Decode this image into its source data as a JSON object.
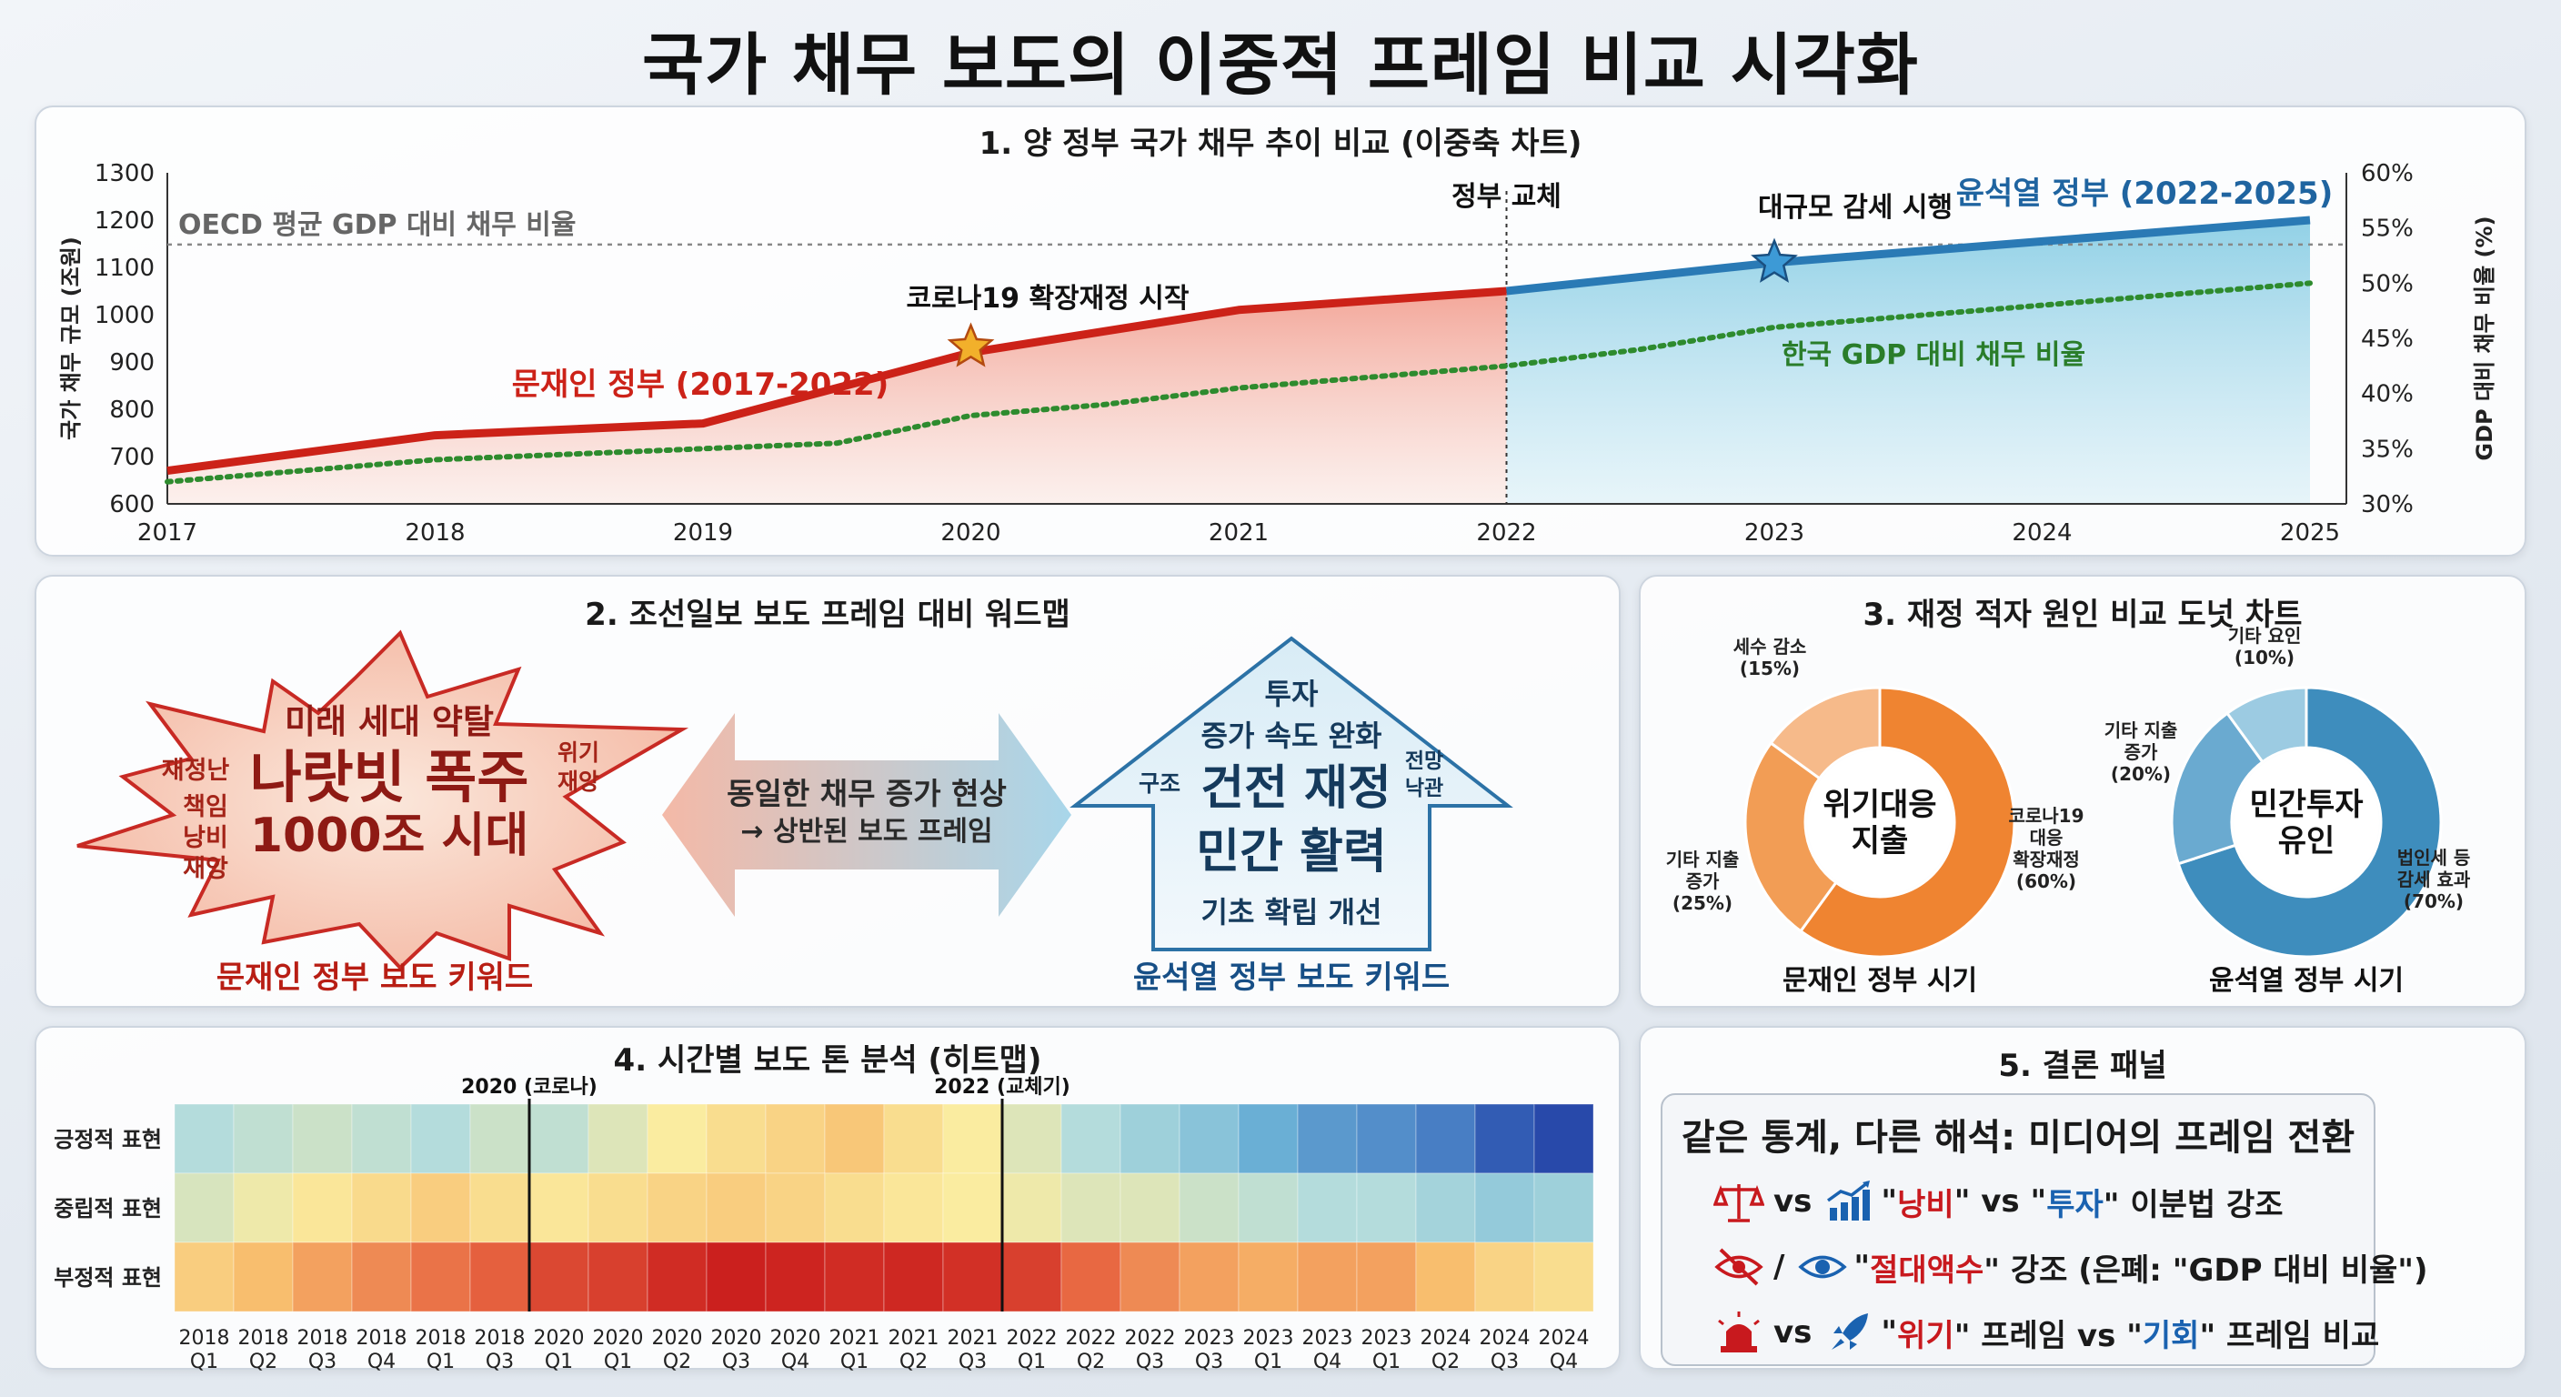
{
  "title": "국가 채무 보도의 이중적 프레임 비교 시각화",
  "chart_data": [
    {
      "type": "line",
      "panel_title": "1. 양 정부 국가 채무 추이 비교 (이중축 차트)",
      "x": [
        2017,
        2018,
        2019,
        2020,
        2021,
        2022,
        2023,
        2024,
        2025
      ],
      "series": [
        {
          "name": "문재인 정부 (2017-2022)",
          "axis": "left",
          "x": [
            2017,
            2018,
            2019,
            2020,
            2021,
            2022
          ],
          "values": [
            670,
            745,
            770,
            920,
            1010,
            1050
          ],
          "color": "#cc2218"
        },
        {
          "name": "윤석열 정부 (2022-2025)",
          "axis": "left",
          "x": [
            2022,
            2023,
            2024,
            2025
          ],
          "values": [
            1050,
            1110,
            1155,
            1200
          ],
          "color": "#2a7ab5"
        },
        {
          "name": "한국 GDP 대비 채무 비율",
          "axis": "right",
          "x": [
            2017,
            2017.5,
            2018,
            2018.5,
            2019,
            2019.5,
            2020,
            2020.5,
            2021,
            2021.5,
            2022,
            2022.5,
            2023,
            2023.5,
            2024,
            2024.5,
            2025
          ],
          "values": [
            32,
            33,
            34,
            34.5,
            35,
            35.5,
            38,
            39,
            40.5,
            41.5,
            42.5,
            44,
            46,
            47,
            48,
            49,
            50
          ],
          "color": "#2e8b2e"
        }
      ],
      "reference_line": {
        "label": "OECD 평균 GDP 대비 채무 비율",
        "value": 53.5
      },
      "ylabel_left": "국가 채무 규모 (조원)",
      "ylabel_right": "GDP 대비 채무 비율 (%)",
      "ylim_left": [
        600,
        1300
      ],
      "yticks_left": [
        600,
        700,
        800,
        900,
        1000,
        1100,
        1200,
        1300
      ],
      "ylim_right": [
        30,
        60
      ],
      "yticks_right": [
        "30%",
        "35%",
        "40%",
        "45%",
        "50%",
        "55%",
        "60%"
      ],
      "annotations": {
        "covid": "코로나19 확장재정 시작",
        "transition": "정부 교체",
        "taxcut": "대규모 감세 시행"
      }
    },
    {
      "type": "pie",
      "donut": true,
      "panel_title": "3. 재정 적자 원인 비교 도넛 차트",
      "charts": [
        {
          "name": "문재인 정부 시기",
          "center": [
            "위기대응",
            "지출"
          ],
          "slices": [
            {
              "label": [
                "코로나19",
                "대응",
                "확장재정",
                "(60%)"
              ],
              "value": 60,
              "color": "#ef8431"
            },
            {
              "label": [
                "기타 지출",
                "증가",
                "(25%)"
              ],
              "value": 25,
              "color": "#f29d55"
            },
            {
              "label": [
                "세수 감소",
                "(15%)"
              ],
              "value": 15,
              "color": "#f6ba8a"
            }
          ]
        },
        {
          "name": "윤석열 정부 시기",
          "center": [
            "민간투자",
            "유인"
          ],
          "slices": [
            {
              "label": [
                "법인세 등",
                "감세 효과",
                "(70%)"
              ],
              "value": 70,
              "color": "#3e8dbd"
            },
            {
              "label": [
                "기타 지출",
                "증가",
                "(20%)"
              ],
              "value": 20,
              "color": "#6aaad0"
            },
            {
              "label": [
                "기타 요인",
                "(10%)"
              ],
              "value": 10,
              "color": "#9ccbe2"
            }
          ]
        }
      ]
    },
    {
      "type": "heatmap",
      "panel_title": "4. 시간별 보도 톤 분석 (히트맵)",
      "rows": [
        "긍정적 표현",
        "중립적 표현",
        "부정적 표현"
      ],
      "columns": [
        [
          "2018",
          "Q1"
        ],
        [
          "2018",
          "Q2"
        ],
        [
          "2018",
          "Q3"
        ],
        [
          "2018",
          "Q4"
        ],
        [
          "2018",
          "Q1"
        ],
        [
          "2018",
          "Q3"
        ],
        [
          "2020",
          "Q1"
        ],
        [
          "2020",
          "Q1"
        ],
        [
          "2020",
          "Q2"
        ],
        [
          "2020",
          "Q3"
        ],
        [
          "2020",
          "Q4"
        ],
        [
          "2021",
          "Q1"
        ],
        [
          "2021",
          "Q2"
        ],
        [
          "2021",
          "Q3"
        ],
        [
          "2022",
          "Q1"
        ],
        [
          "2022",
          "Q2"
        ],
        [
          "2022",
          "Q3"
        ],
        [
          "2023",
          "Q3"
        ],
        [
          "2023",
          "Q1"
        ],
        [
          "2023",
          "Q4"
        ],
        [
          "2023",
          "Q1"
        ],
        [
          "2024",
          "Q2"
        ],
        [
          "2024",
          "Q3"
        ],
        [
          "2024",
          "Q4"
        ]
      ],
      "values": [
        [
          0.62,
          0.6,
          0.58,
          0.6,
          0.62,
          0.58,
          0.6,
          0.55,
          0.5,
          0.45,
          0.42,
          0.38,
          0.45,
          0.5,
          0.55,
          0.62,
          0.66,
          0.7,
          0.76,
          0.8,
          0.82,
          0.85,
          0.92,
          0.96
        ],
        [
          0.56,
          0.52,
          0.48,
          0.44,
          0.4,
          0.45,
          0.48,
          0.45,
          0.42,
          0.4,
          0.42,
          0.45,
          0.48,
          0.5,
          0.52,
          0.55,
          0.55,
          0.58,
          0.6,
          0.62,
          0.62,
          0.65,
          0.68,
          0.66
        ],
        [
          0.4,
          0.35,
          0.3,
          0.26,
          0.22,
          0.18,
          0.12,
          0.1,
          0.05,
          0.02,
          0.03,
          0.05,
          0.04,
          0.06,
          0.1,
          0.2,
          0.26,
          0.3,
          0.32,
          0.3,
          0.3,
          0.35,
          0.42,
          0.45
        ]
      ],
      "markers": [
        {
          "label": "2020 (코로나)",
          "after_col": 6
        },
        {
          "label": "2022 (교체기)",
          "after_col": 14
        }
      ]
    }
  ],
  "wordmap": {
    "panel_title": "2. 조선일보 보도 프레임 대비 워드맵",
    "left": {
      "main": [
        "나랏빗 폭주",
        "1000조 시대"
      ],
      "top": "미래 세대 약탈",
      "side_left": [
        "재정난",
        "책임",
        "낭비",
        "재앙"
      ],
      "side_right": [
        "위기",
        "재앙"
      ],
      "caption": "문재인 정부 보도 키워드"
    },
    "middle": [
      "동일한 채무 증가 현상",
      "→ 상반된 보도 프레임"
    ],
    "right": {
      "top": [
        "투자",
        "증가 속도 완화"
      ],
      "side_left": "구조",
      "side_right": [
        "전망",
        "낙관"
      ],
      "main": [
        "건전 재정",
        "민간 활력"
      ],
      "bottom": "기초 확립 개선",
      "caption": "윤석열 정부 보도 키워드"
    }
  },
  "conclusion": {
    "panel_title": "5. 결론 패널",
    "headline": "같은 통계, 다른 해석: 미디어의 프레임 전환",
    "rows": [
      {
        "icons": [
          "scale-icon",
          "growth-chart-icon"
        ],
        "sep": "vs",
        "q1": "\"",
        "red": "낭비",
        "q2": "\" vs \"",
        "blue": "투자",
        "rest": "\" 이분법 강조"
      },
      {
        "icons": [
          "eye-slash-icon",
          "eye-icon"
        ],
        "sep": "/",
        "q1": "\"",
        "red": "절대액수",
        "q2": "\" 강조 (은폐: \"",
        "blue": "",
        "rest": "GDP 대비 비율\")"
      },
      {
        "icons": [
          "siren-icon",
          "rocket-icon"
        ],
        "sep": "vs",
        "q1": "\"",
        "red": "위기",
        "q2": "\" 프레임 vs \"",
        "blue": "기회",
        "rest": "\" 프레임 비교"
      }
    ]
  },
  "colors": {
    "moon": "#cc2218",
    "yoon": "#2a7ab5",
    "gdp": "#2e8b2e"
  }
}
